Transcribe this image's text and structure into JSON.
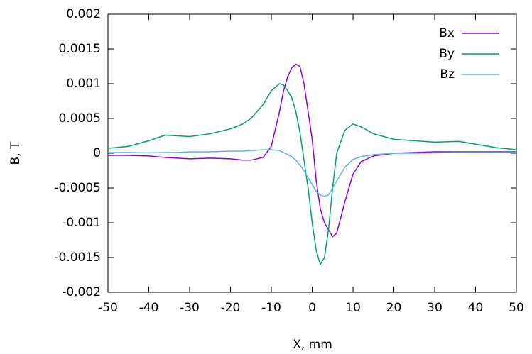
{
  "chart_data": {
    "type": "line",
    "x_label": "X, mm",
    "y_label": "B, T",
    "x": [
      -50,
      -45,
      -40,
      -36,
      -33,
      -30,
      -25,
      -20,
      -17,
      -15,
      -12,
      -10,
      -8,
      -7,
      -6,
      -5,
      -4,
      -3,
      -2,
      -1,
      0,
      1,
      2,
      3,
      4,
      5,
      6,
      8,
      10,
      12,
      15,
      20,
      25,
      30,
      36,
      40,
      45,
      50
    ],
    "series": [
      {
        "name": "Bx",
        "color": "#9400d3",
        "values": [
          -3e-05,
          -3e-05,
          -4e-05,
          -6e-05,
          -7e-05,
          -8e-05,
          -7e-05,
          -8e-05,
          -0.0001,
          -0.0001,
          -6e-05,
          0.0001,
          0.0006,
          0.0009,
          0.0011,
          0.00123,
          0.00128,
          0.00125,
          0.001,
          0.0006,
          0.0002,
          -0.0004,
          -0.0008,
          -0.001,
          -0.0011,
          -0.0012,
          -0.00115,
          -0.0007,
          -0.0003,
          -0.00012,
          -4e-05,
          0,
          1e-05,
          2e-05,
          2e-05,
          2e-05,
          2e-05,
          2e-05
        ]
      },
      {
        "name": "By",
        "color": "#009e73",
        "values": [
          7e-05,
          0.0001,
          0.00018,
          0.00026,
          0.00025,
          0.00024,
          0.00028,
          0.00035,
          0.00042,
          0.0005,
          0.0007,
          0.0009,
          0.001,
          0.00098,
          0.0009,
          0.0008,
          0.0006,
          0.0003,
          -0.0001,
          -0.0005,
          -0.001,
          -0.0014,
          -0.0016,
          -0.0015,
          -0.0011,
          -0.0005,
          0,
          0.00033,
          0.00042,
          0.00038,
          0.00028,
          0.0002,
          0.00018,
          0.00016,
          0.00017,
          0.00013,
          8e-05,
          5e-05
        ]
      },
      {
        "name": "Bz",
        "color": "#56b4e9",
        "values": [
          1e-05,
          1e-05,
          5e-06,
          1e-05,
          1e-05,
          2e-05,
          2e-05,
          3e-05,
          3e-05,
          4e-05,
          5e-05,
          5e-05,
          4e-05,
          1e-05,
          -2e-05,
          -5e-05,
          -0.0001,
          -0.00017,
          -0.00025,
          -0.00035,
          -0.00045,
          -0.00055,
          -0.0006,
          -0.00062,
          -0.0006,
          -0.0005,
          -0.0004,
          -0.0002,
          -9e-05,
          -5e-05,
          -2e-05,
          0,
          0,
          5e-06,
          1e-05,
          1e-05,
          1e-05,
          1e-05
        ]
      }
    ],
    "xlim": [
      -50,
      50
    ],
    "xticks": [
      -50,
      -40,
      -30,
      -20,
      -10,
      0,
      10,
      20,
      30,
      40,
      50
    ],
    "ylim": [
      -0.002,
      0.002
    ],
    "yticks": [
      -0.002,
      -0.0015,
      -0.001,
      -0.0005,
      0,
      0.0005,
      0.001,
      0.0015,
      0.002
    ],
    "grid": false,
    "legend": "top right"
  }
}
